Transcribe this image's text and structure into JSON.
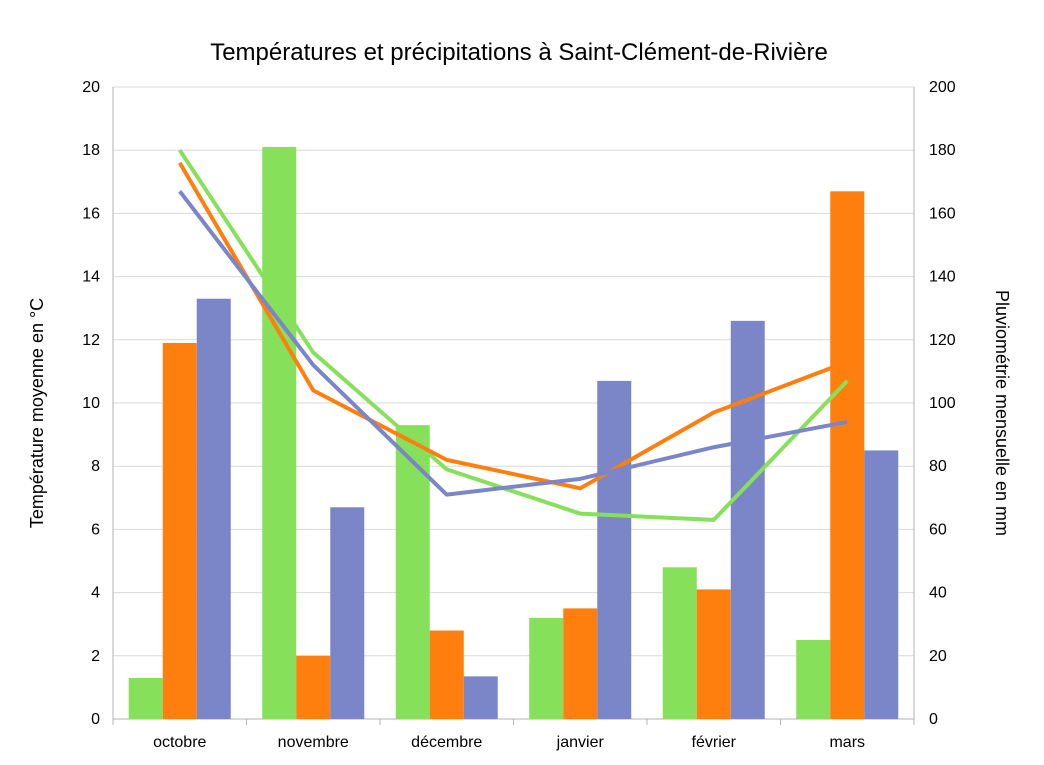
{
  "chart_data": {
    "type": "bar",
    "title": "Températures et précipitations à Saint-Clément-de-Rivière",
    "categories": [
      "octobre",
      "novembre",
      "décembre",
      "janvier",
      "février",
      "mars"
    ],
    "ylabel": "Température moyenne en °C",
    "y2label": "Pluviométrie mensuelle en mm",
    "ylim": [
      0,
      20
    ],
    "y2lim": [
      0,
      200
    ],
    "yticks": [
      "0",
      "2",
      "4",
      "6",
      "8",
      "10",
      "12",
      "14",
      "16",
      "18",
      "20"
    ],
    "y2ticks": [
      "0",
      "20",
      "40",
      "60",
      "80",
      "100",
      "120",
      "140",
      "160",
      "180",
      "200"
    ],
    "grid": true,
    "bar_series": [
      {
        "color": "#86e05a",
        "axis": "right",
        "values": [
          13,
          181,
          93,
          32,
          48,
          25
        ]
      },
      {
        "color": "#ff7f0e",
        "axis": "right",
        "values": [
          119,
          20,
          28,
          35,
          41,
          167
        ]
      },
      {
        "color": "#7b86c8",
        "axis": "right",
        "values": [
          133,
          67,
          13.5,
          107,
          126,
          85
        ]
      }
    ],
    "line_series": [
      {
        "color": "#86e05a",
        "axis": "left",
        "values": [
          18.0,
          11.6,
          7.9,
          6.5,
          6.3,
          10.7
        ]
      },
      {
        "color": "#ff7f0e",
        "axis": "left",
        "values": [
          17.6,
          10.4,
          8.2,
          7.3,
          9.7,
          11.3
        ]
      },
      {
        "color": "#7b86c8",
        "axis": "left",
        "values": [
          16.7,
          11.2,
          7.1,
          7.6,
          8.6,
          9.4
        ]
      }
    ]
  }
}
